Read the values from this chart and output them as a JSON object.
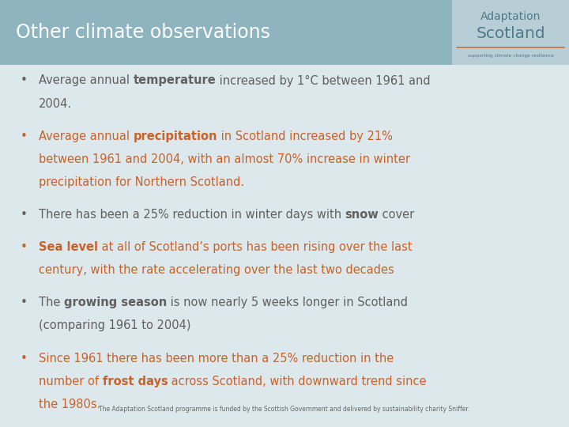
{
  "title": "Other climate observations",
  "title_bg_color": "#8db4bf",
  "title_text_color": "#ffffff",
  "body_bg_color": "#dce8ec",
  "logo_top_text": "Adaptation",
  "logo_bottom_text": "Scotland",
  "logo_sub_text": "supporting climate change resilience",
  "logo_bg_color": "#b8ced6",
  "logo_top_color": "#4d7a8a",
  "logo_bottom_color": "#4d7a8a",
  "logo_line_color": "#c87137",
  "footer_text": "The Adaptation Scotland programme is funded by the Scottish Government and delivered by sustainability charity Sniffer.",
  "bullet_items": [
    {
      "lines": [
        [
          {
            "text": "Average annual ",
            "bold": false,
            "color": "#606060"
          },
          {
            "text": "temperature",
            "bold": true,
            "color": "#606060"
          },
          {
            "text": " increased by 1°C between 1961 and",
            "bold": false,
            "color": "#606060"
          }
        ],
        [
          {
            "text": "2004.",
            "bold": false,
            "color": "#606060"
          }
        ]
      ],
      "bullet_color": "#606060"
    },
    {
      "lines": [
        [
          {
            "text": "Average annual ",
            "bold": false,
            "color": "#c8622a"
          },
          {
            "text": "precipitation",
            "bold": true,
            "color": "#c8622a"
          },
          {
            "text": " in Scotland increased by 21%",
            "bold": false,
            "color": "#c8622a"
          }
        ],
        [
          {
            "text": "between 1961 and 2004, with an almost 70% increase in winter",
            "bold": false,
            "color": "#c8622a"
          }
        ],
        [
          {
            "text": "precipitation for Northern Scotland.",
            "bold": false,
            "color": "#c8622a"
          }
        ]
      ],
      "bullet_color": "#c8622a"
    },
    {
      "lines": [
        [
          {
            "text": "There has been a 25% reduction in winter days with ",
            "bold": false,
            "color": "#606060"
          },
          {
            "text": "snow",
            "bold": true,
            "color": "#606060"
          },
          {
            "text": " cover",
            "bold": false,
            "color": "#606060"
          }
        ]
      ],
      "bullet_color": "#606060"
    },
    {
      "lines": [
        [
          {
            "text": "Sea level",
            "bold": true,
            "color": "#c8622a"
          },
          {
            "text": " at all of Scotland’s ports has been rising over the last",
            "bold": false,
            "color": "#c8622a"
          }
        ],
        [
          {
            "text": "century, with the rate accelerating over the last two decades",
            "bold": false,
            "color": "#c8622a"
          }
        ]
      ],
      "bullet_color": "#c8622a"
    },
    {
      "lines": [
        [
          {
            "text": "The ",
            "bold": false,
            "color": "#606060"
          },
          {
            "text": "growing season",
            "bold": true,
            "color": "#606060"
          },
          {
            "text": " is now nearly 5 weeks longer in Scotland",
            "bold": false,
            "color": "#606060"
          }
        ],
        [
          {
            "text": "(comparing 1961 to 2004)",
            "bold": false,
            "color": "#606060"
          }
        ]
      ],
      "bullet_color": "#606060"
    },
    {
      "lines": [
        [
          {
            "text": "Since 1961 there has been more than a 25% reduction in the",
            "bold": false,
            "color": "#c8622a"
          }
        ],
        [
          {
            "text": "number of ",
            "bold": false,
            "color": "#c8622a"
          },
          {
            "text": "frost days",
            "bold": true,
            "color": "#c8622a"
          },
          {
            "text": " across Scotland, with downward trend since",
            "bold": false,
            "color": "#c8622a"
          }
        ],
        [
          {
            "text": "the 1980s.",
            "bold": false,
            "color": "#c8622a"
          }
        ]
      ],
      "bullet_color": "#c8622a"
    }
  ],
  "font_size": 10.5,
  "title_font_size": 17,
  "fig_width": 7.2,
  "fig_height": 5.4,
  "dpi": 100
}
